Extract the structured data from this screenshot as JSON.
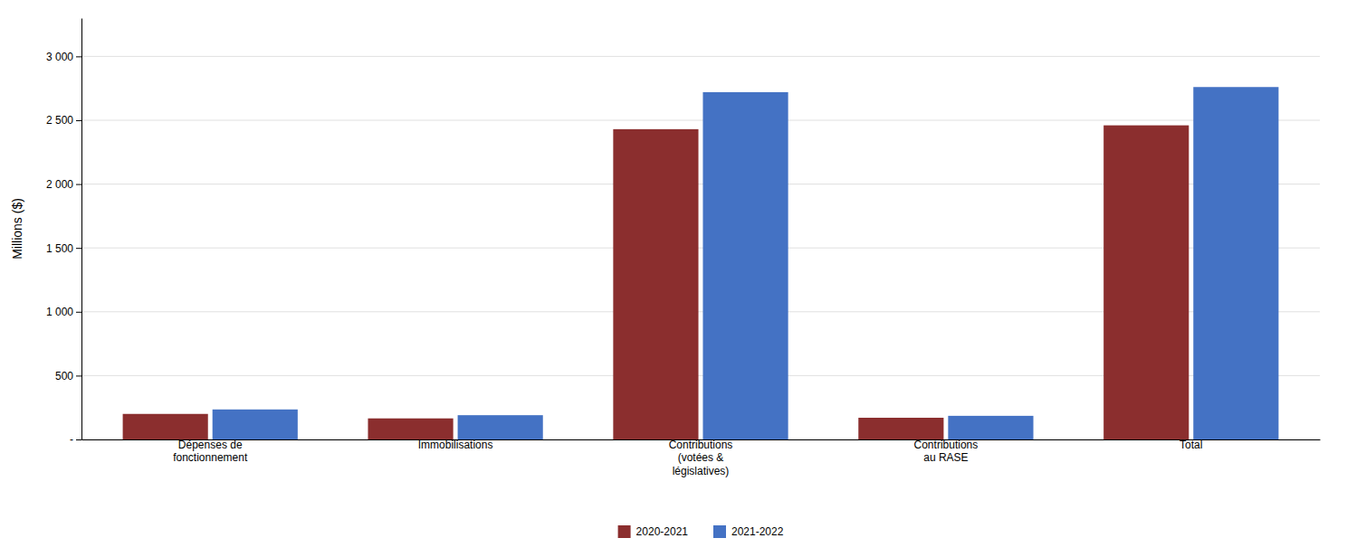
{
  "chart_data": {
    "type": "bar",
    "categories": [
      "Dépenses de\nfonctionnement",
      "Immobilisations",
      "Contributions\n(votées &\nlégislatives)",
      "Contributions\nau RASE",
      "Total"
    ],
    "series": [
      {
        "name": "2020-2021",
        "color": "#8B2E2E",
        "values": [
          200,
          165,
          2430,
          170,
          2460
        ]
      },
      {
        "name": "2021-2022",
        "color": "#4472C4",
        "values": [
          235,
          190,
          2720,
          185,
          2760
        ]
      }
    ],
    "ylabel": "Millions ($)",
    "ylim": [
      0,
      3300
    ],
    "yticks": [
      {
        "value": 0,
        "label": "-"
      },
      500,
      {
        "value": 1000,
        "label": "1 000"
      },
      {
        "value": 1500,
        "label": "1 500"
      },
      {
        "value": 2000,
        "label": "2 000"
      },
      {
        "value": 2500,
        "label": "2 500"
      },
      {
        "value": 3000,
        "label": "3 000"
      }
    ],
    "grid": true,
    "legend": "bottom"
  }
}
